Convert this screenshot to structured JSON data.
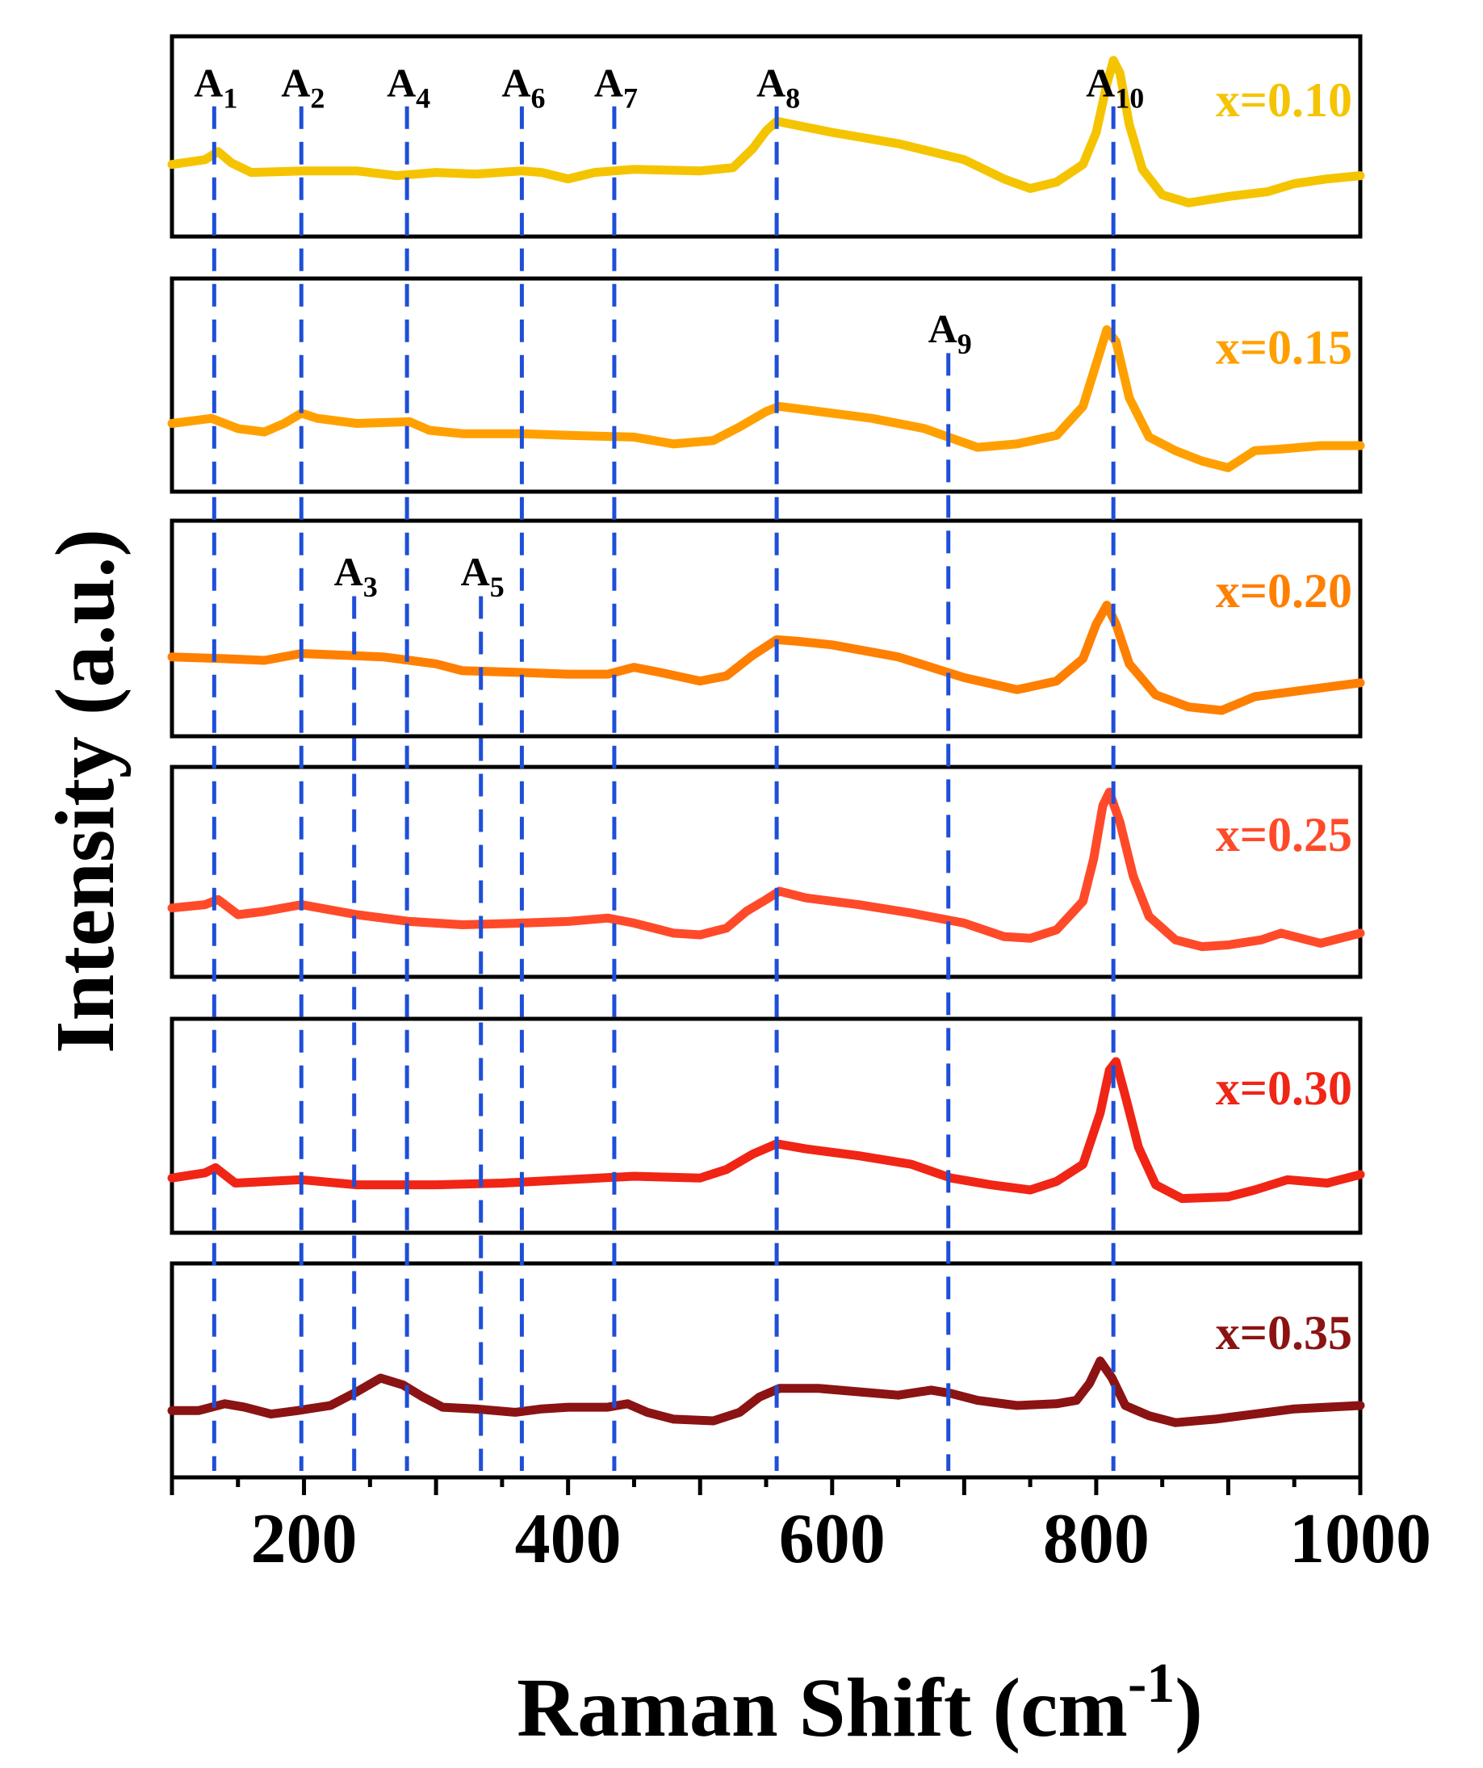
{
  "chart_data": {
    "type": "line",
    "layout": "stacked-panels",
    "xlabel": "Raman Shift (cm",
    "xlabel_sup": "-1",
    "xlabel_close": ")",
    "ylabel": "Intensity (a.u.)",
    "xlim": [
      100,
      1000
    ],
    "xticks": [
      200,
      400,
      600,
      800,
      1000
    ],
    "peak_color": "#1f4fd8",
    "peaks": [
      {
        "name": "A",
        "sub": "1",
        "x": 132,
        "panels": [
          0,
          5
        ],
        "label_panel": 0
      },
      {
        "name": "A",
        "sub": "2",
        "x": 198,
        "panels": [
          0,
          5
        ],
        "label_panel": 0
      },
      {
        "name": "A",
        "sub": "3",
        "x": 238,
        "panels": [
          2,
          5
        ],
        "label_panel": 2
      },
      {
        "name": "A",
        "sub": "4",
        "x": 278,
        "panels": [
          0,
          5
        ],
        "label_panel": 0
      },
      {
        "name": "A",
        "sub": "5",
        "x": 334,
        "panels": [
          2,
          5
        ],
        "label_panel": 2
      },
      {
        "name": "A",
        "sub": "6",
        "x": 365,
        "panels": [
          0,
          5
        ],
        "label_panel": 0
      },
      {
        "name": "A",
        "sub": "7",
        "x": 435,
        "panels": [
          0,
          5
        ],
        "label_panel": 0
      },
      {
        "name": "A",
        "sub": "8",
        "x": 558,
        "panels": [
          0,
          5
        ],
        "label_panel": 0
      },
      {
        "name": "A",
        "sub": "9",
        "x": 688,
        "panels": [
          1,
          5
        ],
        "label_panel": 1
      },
      {
        "name": "A",
        "sub": "10",
        "x": 813,
        "panels": [
          0,
          5
        ],
        "label_panel": 0
      }
    ],
    "series": [
      {
        "name": "x=0.10",
        "color": "#f5c400",
        "ylim": [
          0,
          1
        ],
        "points": [
          [
            100,
            0.35
          ],
          [
            125,
            0.38
          ],
          [
            135,
            0.43
          ],
          [
            145,
            0.36
          ],
          [
            160,
            0.3
          ],
          [
            200,
            0.31
          ],
          [
            240,
            0.31
          ],
          [
            270,
            0.28
          ],
          [
            300,
            0.3
          ],
          [
            330,
            0.29
          ],
          [
            365,
            0.31
          ],
          [
            380,
            0.3
          ],
          [
            400,
            0.26
          ],
          [
            420,
            0.3
          ],
          [
            450,
            0.32
          ],
          [
            500,
            0.31
          ],
          [
            525,
            0.33
          ],
          [
            540,
            0.45
          ],
          [
            550,
            0.56
          ],
          [
            558,
            0.62
          ],
          [
            570,
            0.6
          ],
          [
            600,
            0.55
          ],
          [
            650,
            0.48
          ],
          [
            700,
            0.38
          ],
          [
            730,
            0.26
          ],
          [
            750,
            0.2
          ],
          [
            770,
            0.24
          ],
          [
            790,
            0.35
          ],
          [
            800,
            0.55
          ],
          [
            808,
            0.85
          ],
          [
            813,
            1.0
          ],
          [
            818,
            0.92
          ],
          [
            825,
            0.6
          ],
          [
            835,
            0.32
          ],
          [
            850,
            0.16
          ],
          [
            870,
            0.11
          ],
          [
            900,
            0.15
          ],
          [
            930,
            0.18
          ],
          [
            950,
            0.23
          ],
          [
            975,
            0.26
          ],
          [
            1000,
            0.28
          ]
        ]
      },
      {
        "name": "x=0.15",
        "color": "#ffa000",
        "ylim": [
          0,
          1
        ],
        "points": [
          [
            100,
            0.3
          ],
          [
            130,
            0.33
          ],
          [
            150,
            0.27
          ],
          [
            170,
            0.25
          ],
          [
            185,
            0.3
          ],
          [
            198,
            0.36
          ],
          [
            210,
            0.33
          ],
          [
            240,
            0.3
          ],
          [
            280,
            0.31
          ],
          [
            295,
            0.26
          ],
          [
            320,
            0.24
          ],
          [
            365,
            0.24
          ],
          [
            400,
            0.23
          ],
          [
            450,
            0.22
          ],
          [
            480,
            0.18
          ],
          [
            510,
            0.2
          ],
          [
            530,
            0.28
          ],
          [
            550,
            0.37
          ],
          [
            560,
            0.4
          ],
          [
            590,
            0.37
          ],
          [
            630,
            0.33
          ],
          [
            670,
            0.27
          ],
          [
            688,
            0.22
          ],
          [
            710,
            0.16
          ],
          [
            740,
            0.18
          ],
          [
            770,
            0.23
          ],
          [
            790,
            0.4
          ],
          [
            800,
            0.65
          ],
          [
            808,
            0.85
          ],
          [
            815,
            0.78
          ],
          [
            825,
            0.45
          ],
          [
            840,
            0.22
          ],
          [
            860,
            0.14
          ],
          [
            880,
            0.08
          ],
          [
            900,
            0.04
          ],
          [
            920,
            0.14
          ],
          [
            940,
            0.15
          ],
          [
            970,
            0.17
          ],
          [
            1000,
            0.17
          ]
        ]
      },
      {
        "name": "x=0.20",
        "color": "#ff7f00",
        "ylim": [
          0,
          1
        ],
        "points": [
          [
            100,
            0.36
          ],
          [
            140,
            0.35
          ],
          [
            170,
            0.34
          ],
          [
            198,
            0.38
          ],
          [
            230,
            0.37
          ],
          [
            260,
            0.36
          ],
          [
            280,
            0.34
          ],
          [
            300,
            0.32
          ],
          [
            320,
            0.28
          ],
          [
            365,
            0.27
          ],
          [
            400,
            0.26
          ],
          [
            430,
            0.26
          ],
          [
            450,
            0.3
          ],
          [
            470,
            0.27
          ],
          [
            500,
            0.22
          ],
          [
            520,
            0.25
          ],
          [
            540,
            0.37
          ],
          [
            558,
            0.46
          ],
          [
            575,
            0.45
          ],
          [
            600,
            0.43
          ],
          [
            650,
            0.36
          ],
          [
            700,
            0.24
          ],
          [
            740,
            0.17
          ],
          [
            770,
            0.22
          ],
          [
            790,
            0.35
          ],
          [
            800,
            0.55
          ],
          [
            808,
            0.66
          ],
          [
            815,
            0.55
          ],
          [
            825,
            0.32
          ],
          [
            845,
            0.14
          ],
          [
            870,
            0.07
          ],
          [
            895,
            0.05
          ],
          [
            920,
            0.13
          ],
          [
            960,
            0.17
          ],
          [
            1000,
            0.21
          ]
        ]
      },
      {
        "name": "x=0.25",
        "color": "#ff4a2a",
        "ylim": [
          0,
          1
        ],
        "points": [
          [
            100,
            0.31
          ],
          [
            125,
            0.33
          ],
          [
            135,
            0.36
          ],
          [
            150,
            0.27
          ],
          [
            170,
            0.29
          ],
          [
            198,
            0.33
          ],
          [
            240,
            0.27
          ],
          [
            280,
            0.23
          ],
          [
            320,
            0.21
          ],
          [
            365,
            0.22
          ],
          [
            400,
            0.23
          ],
          [
            430,
            0.25
          ],
          [
            450,
            0.22
          ],
          [
            480,
            0.16
          ],
          [
            500,
            0.15
          ],
          [
            520,
            0.19
          ],
          [
            535,
            0.29
          ],
          [
            550,
            0.36
          ],
          [
            560,
            0.41
          ],
          [
            580,
            0.37
          ],
          [
            620,
            0.33
          ],
          [
            660,
            0.28
          ],
          [
            700,
            0.22
          ],
          [
            730,
            0.14
          ],
          [
            750,
            0.13
          ],
          [
            770,
            0.18
          ],
          [
            790,
            0.35
          ],
          [
            798,
            0.6
          ],
          [
            805,
            0.92
          ],
          [
            810,
            1.0
          ],
          [
            818,
            0.82
          ],
          [
            828,
            0.5
          ],
          [
            840,
            0.26
          ],
          [
            860,
            0.12
          ],
          [
            880,
            0.08
          ],
          [
            900,
            0.09
          ],
          [
            925,
            0.12
          ],
          [
            940,
            0.16
          ],
          [
            970,
            0.1
          ],
          [
            1000,
            0.16
          ]
        ]
      },
      {
        "name": "x=0.30",
        "color": "#f02515",
        "ylim": [
          0,
          1
        ],
        "points": [
          [
            100,
            0.22
          ],
          [
            125,
            0.25
          ],
          [
            133,
            0.28
          ],
          [
            148,
            0.19
          ],
          [
            198,
            0.21
          ],
          [
            240,
            0.18
          ],
          [
            300,
            0.18
          ],
          [
            350,
            0.19
          ],
          [
            400,
            0.21
          ],
          [
            450,
            0.23
          ],
          [
            500,
            0.22
          ],
          [
            520,
            0.27
          ],
          [
            540,
            0.36
          ],
          [
            558,
            0.42
          ],
          [
            580,
            0.39
          ],
          [
            620,
            0.35
          ],
          [
            660,
            0.3
          ],
          [
            690,
            0.22
          ],
          [
            720,
            0.18
          ],
          [
            750,
            0.15
          ],
          [
            770,
            0.2
          ],
          [
            790,
            0.3
          ],
          [
            803,
            0.6
          ],
          [
            810,
            0.85
          ],
          [
            815,
            0.9
          ],
          [
            822,
            0.7
          ],
          [
            832,
            0.4
          ],
          [
            845,
            0.18
          ],
          [
            865,
            0.1
          ],
          [
            900,
            0.11
          ],
          [
            920,
            0.15
          ],
          [
            945,
            0.21
          ],
          [
            975,
            0.19
          ],
          [
            1000,
            0.24
          ]
        ]
      },
      {
        "name": "x=0.35",
        "color": "#8b1313",
        "ylim": [
          0,
          1
        ],
        "points": [
          [
            100,
            0.29
          ],
          [
            120,
            0.29
          ],
          [
            140,
            0.33
          ],
          [
            155,
            0.31
          ],
          [
            175,
            0.27
          ],
          [
            195,
            0.29
          ],
          [
            220,
            0.32
          ],
          [
            240,
            0.4
          ],
          [
            258,
            0.48
          ],
          [
            275,
            0.44
          ],
          [
            290,
            0.37
          ],
          [
            305,
            0.31
          ],
          [
            330,
            0.3
          ],
          [
            360,
            0.28
          ],
          [
            380,
            0.3
          ],
          [
            400,
            0.31
          ],
          [
            430,
            0.31
          ],
          [
            445,
            0.33
          ],
          [
            460,
            0.28
          ],
          [
            480,
            0.24
          ],
          [
            510,
            0.23
          ],
          [
            530,
            0.28
          ],
          [
            545,
            0.37
          ],
          [
            560,
            0.42
          ],
          [
            590,
            0.42
          ],
          [
            620,
            0.4
          ],
          [
            650,
            0.38
          ],
          [
            675,
            0.41
          ],
          [
            690,
            0.39
          ],
          [
            710,
            0.35
          ],
          [
            740,
            0.32
          ],
          [
            770,
            0.33
          ],
          [
            785,
            0.35
          ],
          [
            795,
            0.45
          ],
          [
            803,
            0.58
          ],
          [
            812,
            0.48
          ],
          [
            822,
            0.32
          ],
          [
            840,
            0.26
          ],
          [
            860,
            0.22
          ],
          [
            890,
            0.24
          ],
          [
            920,
            0.27
          ],
          [
            950,
            0.3
          ],
          [
            1000,
            0.32
          ]
        ]
      }
    ]
  }
}
